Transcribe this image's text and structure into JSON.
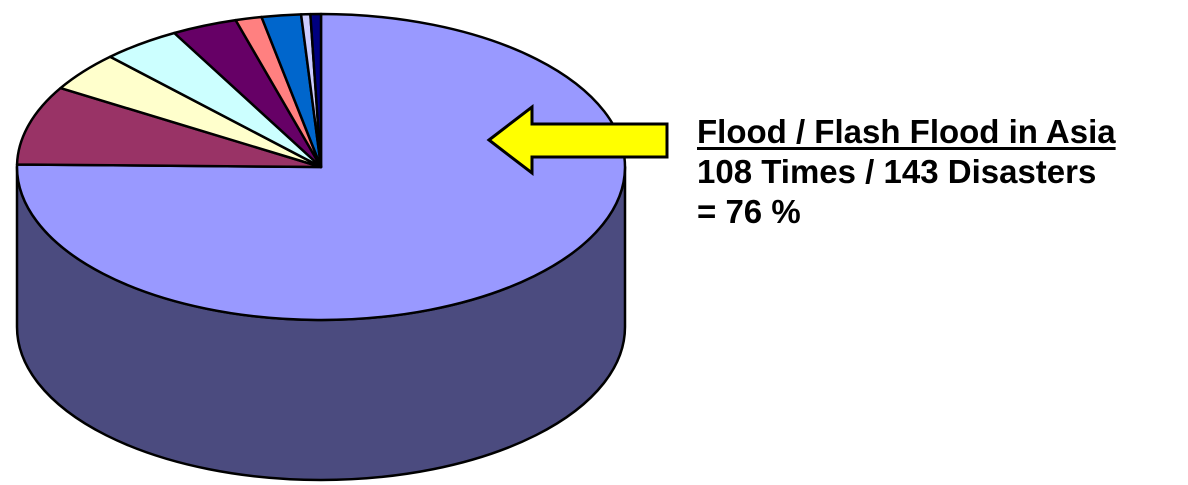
{
  "chart_data": {
    "type": "pie",
    "title": "",
    "slices": [
      {
        "value": 108,
        "color": "#9999ff",
        "side_color": "#4b4b7f"
      },
      {
        "value": 12,
        "color": "#993366",
        "side_color": "#551a33"
      },
      {
        "value": 6,
        "color": "#ffffcc",
        "side_color": "#8c8c6e"
      },
      {
        "value": 6,
        "color": "#ccffff",
        "side_color": "#6f8c8c"
      },
      {
        "value": 5,
        "color": "#660066",
        "side_color": "#330033"
      },
      {
        "value": 2,
        "color": "#ff8080",
        "side_color": "#8c4646"
      },
      {
        "value": 3,
        "color": "#0066cc",
        "side_color": "#003366"
      },
      {
        "value": 0.7,
        "color": "#ccccff",
        "side_color": "#707090"
      },
      {
        "value": 0.8,
        "color": "#000080",
        "side_color": "#000040"
      }
    ],
    "highlighted_slice": 0
  },
  "annotation": {
    "line1": "Flood / Flash Flood in Asia",
    "line2": "108 Times / 143 Disasters",
    "line3": "= 76 %"
  },
  "arrow": {
    "color": "#ffff00",
    "outline": "#000000"
  }
}
